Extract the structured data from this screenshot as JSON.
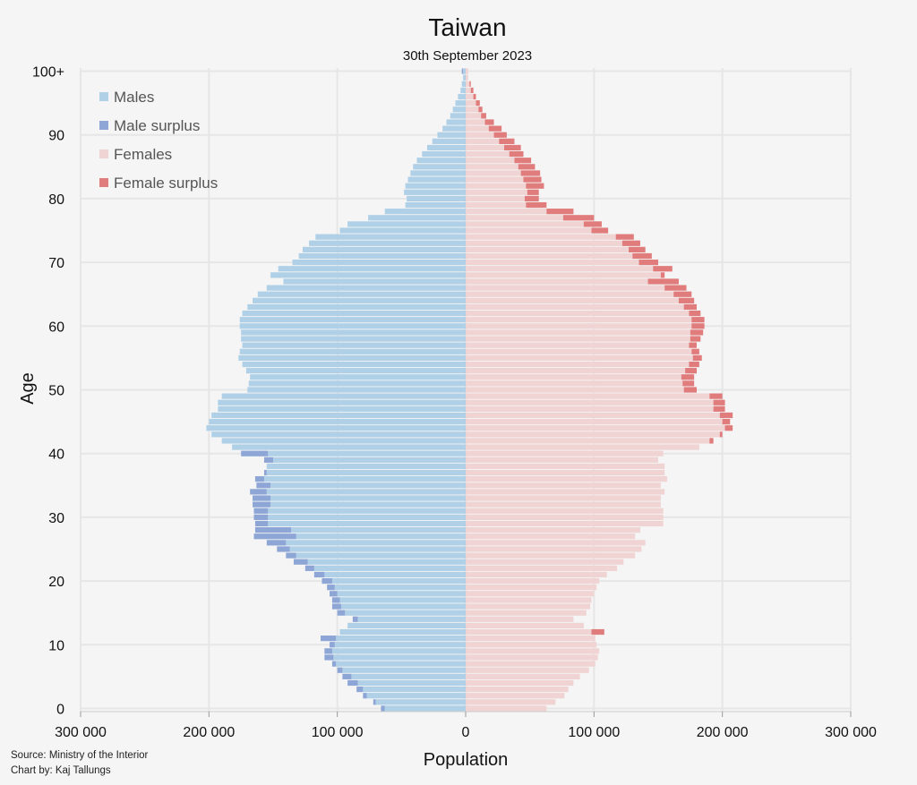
{
  "chart_data": {
    "type": "bar",
    "title": "Taiwan",
    "subtitle": "30th September 2023",
    "xlabel": "Population",
    "ylabel": "Age",
    "xlim": [
      -300000,
      300000
    ],
    "ylim": [
      0,
      100
    ],
    "x_ticks": [
      -300000,
      -200000,
      -100000,
      0,
      100000,
      200000,
      300000
    ],
    "x_tick_labels": [
      "300 000",
      "200 000",
      "100 000",
      "0",
      "100 000",
      "200 000",
      "300 000"
    ],
    "y_ticks": [
      0,
      10,
      20,
      30,
      40,
      50,
      60,
      70,
      80,
      90,
      100
    ],
    "y_tick_labels": [
      "0",
      "10",
      "20",
      "30",
      "40",
      "50",
      "60",
      "70",
      "80",
      "90",
      "100+"
    ],
    "grid": true,
    "legend_position": "top-left",
    "series_names": [
      "Males",
      "Male surplus",
      "Females",
      "Female surplus"
    ],
    "colors": {
      "males": "#afd0e7",
      "male_surplus": "#8da6d6",
      "females": "#f0d3d3",
      "female_surplus": "#e07c7c",
      "grid": "#e6e6e6",
      "background": "#f5f5f5"
    },
    "ages": [
      0,
      1,
      2,
      3,
      4,
      5,
      6,
      7,
      8,
      9,
      10,
      11,
      12,
      13,
      14,
      15,
      16,
      17,
      18,
      19,
      20,
      21,
      22,
      23,
      24,
      25,
      26,
      27,
      28,
      29,
      30,
      31,
      32,
      33,
      34,
      35,
      36,
      37,
      38,
      39,
      40,
      41,
      42,
      43,
      44,
      45,
      46,
      47,
      48,
      49,
      50,
      51,
      52,
      53,
      54,
      55,
      56,
      57,
      58,
      59,
      60,
      61,
      62,
      63,
      64,
      65,
      66,
      67,
      68,
      69,
      70,
      71,
      72,
      73,
      74,
      75,
      76,
      77,
      78,
      79,
      80,
      81,
      82,
      83,
      84,
      85,
      86,
      87,
      88,
      89,
      90,
      91,
      92,
      93,
      94,
      95,
      96,
      97,
      98,
      99,
      100
    ],
    "males": [
      66000,
      72000,
      80000,
      85000,
      92000,
      96000,
      100000,
      104000,
      110000,
      110000,
      106000,
      113000,
      98000,
      92000,
      88000,
      100000,
      104000,
      104000,
      106000,
      108000,
      112000,
      118000,
      125000,
      134000,
      140000,
      147000,
      155000,
      165000,
      164000,
      164000,
      165000,
      165000,
      166000,
      166000,
      168000,
      163000,
      164000,
      157000,
      155000,
      157000,
      175000,
      182000,
      190000,
      198000,
      202000,
      200000,
      198000,
      193000,
      193000,
      190000,
      170000,
      169000,
      168000,
      171000,
      174000,
      177000,
      176000,
      174000,
      175000,
      175000,
      176000,
      176000,
      174000,
      170000,
      166000,
      162000,
      155000,
      142000,
      152000,
      146000,
      135000,
      130000,
      127000,
      122000,
      117000,
      98000,
      92000,
      76000,
      63000,
      47000,
      46000,
      48000,
      47000,
      45000,
      43000,
      41000,
      38000,
      34000,
      30000,
      26000,
      22000,
      18000,
      15000,
      12000,
      10000,
      8000,
      6000,
      4000,
      3000,
      2000,
      3000
    ],
    "females": [
      63000,
      70000,
      77000,
      80000,
      84000,
      89000,
      96000,
      101000,
      103000,
      104000,
      102000,
      101000,
      108000,
      92000,
      84000,
      94000,
      97000,
      98000,
      100000,
      102000,
      104000,
      110000,
      118000,
      123000,
      132000,
      137000,
      140000,
      132000,
      136000,
      154000,
      154000,
      154000,
      152000,
      152000,
      155000,
      152000,
      157000,
      155000,
      155000,
      150000,
      154000,
      182000,
      193000,
      200000,
      208000,
      206000,
      208000,
      202000,
      202000,
      200000,
      180000,
      178000,
      178000,
      180000,
      182000,
      184000,
      182000,
      180000,
      183000,
      185000,
      186000,
      186000,
      183000,
      180000,
      178000,
      176000,
      172000,
      166000,
      155000,
      161000,
      150000,
      145000,
      140000,
      136000,
      131000,
      111000,
      106000,
      100000,
      84000,
      63000,
      57000,
      57000,
      61000,
      59000,
      58000,
      54000,
      51000,
      45000,
      43000,
      38000,
      32000,
      28000,
      22000,
      16000,
      13000,
      11000,
      8000,
      6000,
      4000,
      2000,
      2000
    ],
    "source_text": "Source: Ministry of the Interior",
    "credit_text": "Chart by: Kaj Tallungs"
  }
}
